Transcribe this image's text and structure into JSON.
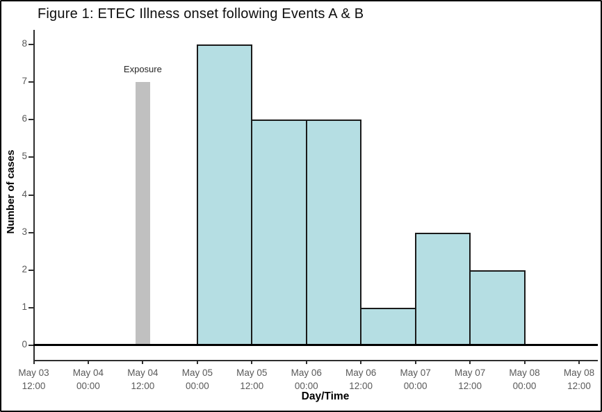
{
  "chart_data": {
    "type": "bar",
    "subtype": "epidemic-curve-histogram",
    "title": "Figure 1: ETEC Illness onset following Events A & B",
    "xlabel": "Day/Time",
    "ylabel": "Number of cases",
    "ylim": [
      0,
      8
    ],
    "y_ticks": [
      0,
      1,
      2,
      3,
      4,
      5,
      6,
      7,
      8
    ],
    "grid": "off",
    "legend": "none",
    "x_tick_labels": [
      [
        "May 03",
        "12:00"
      ],
      [
        "May 04",
        "00:00"
      ],
      [
        "May 04",
        "12:00"
      ],
      [
        "May 05",
        "00:00"
      ],
      [
        "May 05",
        "12:00"
      ],
      [
        "May 06",
        "00:00"
      ],
      [
        "May 06",
        "12:00"
      ],
      [
        "May 07",
        "00:00"
      ],
      [
        "May 07",
        "12:00"
      ],
      [
        "May 08",
        "00:00"
      ],
      [
        "May 08",
        "12:00"
      ]
    ],
    "bars": [
      {
        "interval": "May 05 00:00 - May 05 12:00",
        "from_tick": 3,
        "to_tick": 4,
        "value": 8
      },
      {
        "interval": "May 05 12:00 - May 06 00:00",
        "from_tick": 4,
        "to_tick": 5,
        "value": 6
      },
      {
        "interval": "May 06 00:00 - May 06 12:00",
        "from_tick": 5,
        "to_tick": 6,
        "value": 6
      },
      {
        "interval": "May 06 12:00 - May 07 00:00",
        "from_tick": 6,
        "to_tick": 7,
        "value": 1
      },
      {
        "interval": "May 07 00:00 - May 07 12:00",
        "from_tick": 7,
        "to_tick": 8,
        "value": 3
      },
      {
        "interval": "May 07 12:00 - May 08 00:00",
        "from_tick": 8,
        "to_tick": 9,
        "value": 2
      }
    ],
    "annotation": {
      "label": "Exposure",
      "at_tick": 2,
      "time": "May 04 12:00",
      "value": 7
    },
    "colors": {
      "bar_fill": "#b5dee3",
      "bar_stroke": "#1a1a1a",
      "exposure_fill": "#c0c0c0",
      "axis": "#2e2e2e",
      "baseline": "#000000",
      "tick_label": "#595959",
      "text": "#0d0d0d"
    }
  }
}
